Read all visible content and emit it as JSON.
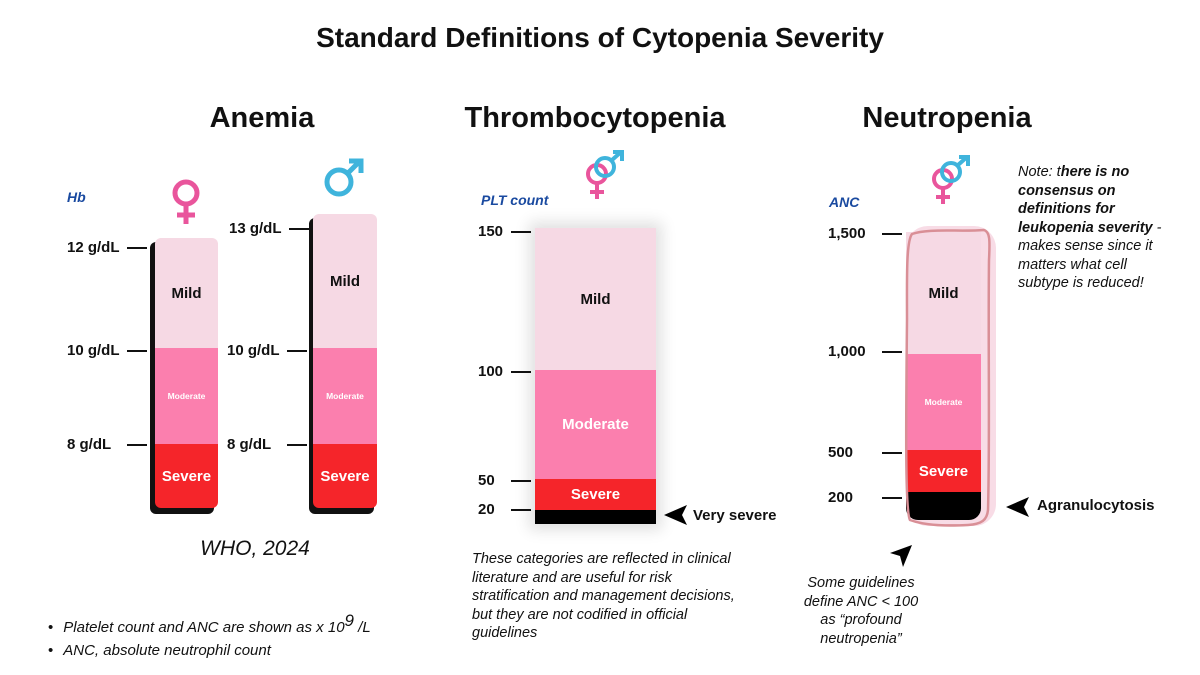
{
  "title": "Standard Definitions of Cytopenia Severity",
  "colors": {
    "mild": "#f6d9e4",
    "moderate": "#fb7fae",
    "severe": "#f5252a",
    "very_severe": "#000000",
    "unit_label": "#1a4aa0",
    "female": "#e9559c",
    "male": "#3fb4dc"
  },
  "anemia": {
    "title": "Anemia",
    "unit": "Hb",
    "female_icon": "female-symbol-icon",
    "male_icon": "male-symbol-icon",
    "female_ticks": [
      "12 g/dL",
      "10 g/dL",
      "8 g/dL"
    ],
    "male_ticks": [
      "13 g/dL",
      "10 g/dL",
      "8 g/dL"
    ],
    "labels": {
      "mild": "Mild",
      "moderate": "Moderate",
      "severe": "Severe"
    },
    "source": "WHO, 2024"
  },
  "thrombocytopenia": {
    "title": "Thrombocytopenia",
    "unit": "PLT count",
    "icon": "female-male-symbol-icon",
    "ticks": [
      "150",
      "100",
      "50",
      "20"
    ],
    "labels": {
      "mild": "Mild",
      "moderate": "Moderate",
      "severe": "Severe",
      "very_severe": "Very severe"
    },
    "note": "These categories are reflected in clinical literature and are useful for risk stratification and management decisions, but they are not codified in official guidelines"
  },
  "neutropenia": {
    "title": "Neutropenia",
    "unit": "ANC",
    "icon": "female-male-symbol-icon",
    "ticks": [
      "1,500",
      "1,000",
      "500",
      "200"
    ],
    "labels": {
      "mild": "Mild",
      "moderate": "Moderate",
      "severe": "Severe",
      "agranulocytosis": "Agranulocytosis"
    },
    "note_lead": "Note: t",
    "note_bold": "here is no consensus on definitions for leukopenia severity",
    "note_rest": " - makes sense since it matters what cell subtype is reduced!",
    "profound_note": "Some guidelines define ANC < 100 as “profound neutropenia”"
  },
  "footnotes": {
    "bullet1_prefix": "Platelet count and ANC are shown as x 10",
    "bullet1_exp": "9",
    "bullet1_suffix": " /L",
    "bullet2": "ANC, absolute neutrophil count"
  }
}
